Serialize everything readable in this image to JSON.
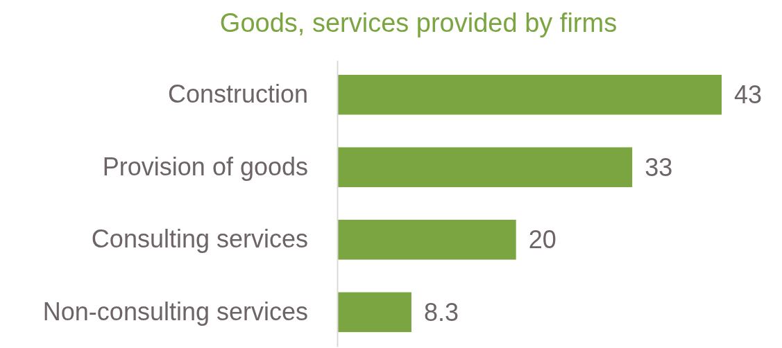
{
  "chart_data": {
    "type": "bar",
    "orientation": "horizontal",
    "title": "Goods, services provided by firms",
    "categories": [
      "Construction",
      "Provision of goods",
      "Consulting services",
      "Non-consulting services"
    ],
    "values": [
      43,
      33,
      20,
      8.3
    ],
    "color": "#7aa540",
    "data_labels": true
  }
}
